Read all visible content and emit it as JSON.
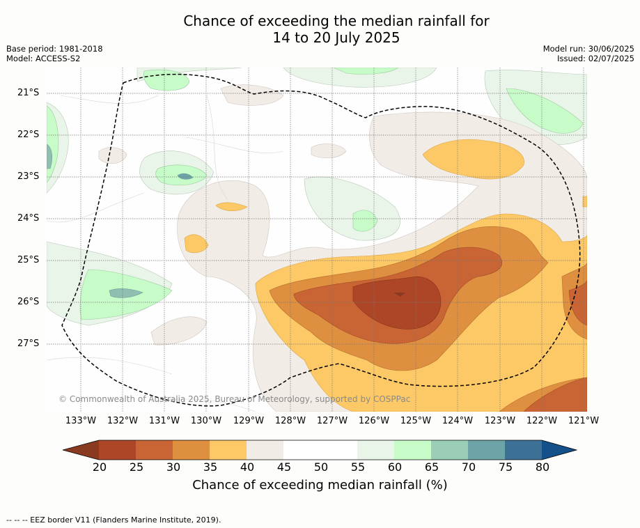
{
  "title_line1": "Chance of exceeding the median rainfall for",
  "title_line2": "14 to 20 July 2025",
  "base_period": "Base period: 1981-2018",
  "model": "Model: ACCESS-S2",
  "model_run": "Model run: 30/06/2025",
  "issued": "Issued: 02/07/2025",
  "x_ticks": [
    "133°W",
    "132°W",
    "131°W",
    "130°W",
    "129°W",
    "128°W",
    "127°W",
    "126°W",
    "125°W",
    "124°W",
    "123°W",
    "122°W",
    "121°W"
  ],
  "y_ticks": [
    "21°S",
    "22°S",
    "23°S",
    "24°S",
    "25°S",
    "26°S",
    "27°S"
  ],
  "copyright": "© Commonwealth of Australia 2025, Bureau of Meteorology, supported by COSPPac",
  "colorbar": {
    "ticks": [
      "20",
      "25",
      "30",
      "35",
      "40",
      "45",
      "50",
      "55",
      "60",
      "65",
      "70",
      "75",
      "80"
    ],
    "colors": [
      "#8b3a22",
      "#ad4627",
      "#c96535",
      "#de8f40",
      "#fdc866",
      "#f2ece6",
      "#ffffff",
      "#ffffff",
      "#eaf5ea",
      "#c7fcc9",
      "#9bceb7",
      "#6da4a7",
      "#3c7195",
      "#14508a"
    ],
    "label": "Chance of exceeding median rainfall (%)"
  },
  "footnote": "--  --  -- EEZ border V11 (Flanders Marine Institute, 2019)."
}
